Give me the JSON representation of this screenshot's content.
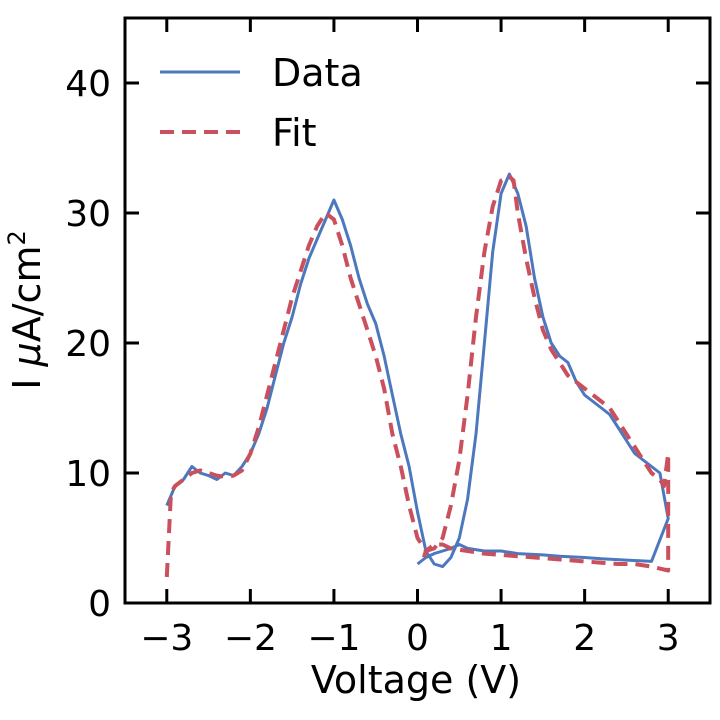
{
  "chart_data": {
    "type": "line",
    "title": "",
    "xlabel": "Voltage (V)",
    "ylabel": "I μA/cm²",
    "ylabel_parts": {
      "prefix": "I ",
      "mu": "μ",
      "unit": "A/cm",
      "exp": "2"
    },
    "xlim": [
      -3.5,
      3.5
    ],
    "ylim": [
      0,
      45
    ],
    "xticks": [
      -3,
      -2,
      -1,
      0,
      1,
      2,
      3
    ],
    "xtick_labels": [
      "−3",
      "−2",
      "−1",
      "0",
      "1",
      "2",
      "3"
    ],
    "yticks": [
      0,
      10,
      20,
      30,
      40
    ],
    "ytick_labels": [
      "0",
      "10",
      "20",
      "30",
      "40"
    ],
    "grid": false,
    "legend_position": "top-left",
    "series": [
      {
        "name": "Data",
        "style": "solid",
        "color": "#4c78bd",
        "x": [
          -3.0,
          -2.9,
          -2.8,
          -2.7,
          -2.6,
          -2.5,
          -2.4,
          -2.3,
          -2.2,
          -2.1,
          -2.0,
          -1.9,
          -1.8,
          -1.7,
          -1.6,
          -1.5,
          -1.4,
          -1.3,
          -1.2,
          -1.1,
          -1.0,
          -0.9,
          -0.8,
          -0.7,
          -0.6,
          -0.5,
          -0.4,
          -0.3,
          -0.2,
          -0.1,
          0.0,
          0.1,
          0.2,
          0.3,
          0.4,
          0.5,
          0.6,
          0.7,
          0.8,
          0.9,
          1.0,
          1.1,
          1.2,
          1.3,
          1.4,
          1.5,
          1.6,
          1.7,
          1.8,
          1.9,
          2.0,
          2.1,
          2.2,
          2.3,
          2.4,
          2.5,
          2.6,
          2.7,
          2.8,
          2.9,
          3.0,
          2.8,
          2.5,
          2.2,
          2.0,
          1.7,
          1.5,
          1.2,
          1.0,
          0.8,
          0.6,
          0.5,
          0.4,
          0.3,
          0.2,
          0.1,
          0.0
        ],
        "y": [
          7.5,
          9.0,
          9.5,
          10.5,
          10.0,
          9.8,
          9.5,
          10.0,
          9.8,
          10.5,
          11.5,
          13.0,
          15.0,
          17.5,
          20.0,
          22.0,
          24.5,
          26.5,
          28.0,
          29.5,
          31.0,
          29.5,
          27.5,
          25.0,
          23.0,
          21.5,
          19.0,
          16.0,
          13.0,
          10.5,
          7.0,
          4.0,
          3.0,
          2.8,
          3.5,
          5.0,
          8.0,
          13.0,
          20.0,
          27.0,
          31.5,
          33.0,
          31.5,
          29.0,
          25.0,
          22.0,
          20.0,
          19.0,
          18.5,
          17.0,
          16.0,
          15.5,
          15.0,
          14.5,
          13.5,
          12.5,
          11.5,
          11.0,
          10.5,
          10.0,
          6.5,
          3.2,
          3.3,
          3.4,
          3.5,
          3.6,
          3.7,
          3.8,
          4.0,
          4.0,
          4.2,
          4.5,
          4.2,
          4.0,
          3.8,
          3.5,
          3.0
        ]
      },
      {
        "name": "Fit",
        "style": "dashed",
        "color": "#c9505c",
        "x": [
          -3.0,
          -2.95,
          -2.9,
          -2.8,
          -2.7,
          -2.6,
          -2.5,
          -2.4,
          -2.3,
          -2.2,
          -2.1,
          -2.0,
          -1.9,
          -1.8,
          -1.7,
          -1.6,
          -1.5,
          -1.4,
          -1.3,
          -1.2,
          -1.1,
          -1.0,
          -0.9,
          -0.8,
          -0.7,
          -0.6,
          -0.5,
          -0.4,
          -0.3,
          -0.2,
          -0.1,
          0.0,
          0.1,
          0.2,
          0.3,
          0.4,
          0.5,
          0.6,
          0.7,
          0.8,
          0.9,
          1.0,
          1.1,
          1.15,
          1.2,
          1.3,
          1.4,
          1.5,
          1.6,
          1.7,
          1.8,
          1.9,
          2.0,
          2.1,
          2.2,
          2.3,
          2.4,
          2.5,
          2.6,
          2.7,
          2.8,
          2.9,
          2.95,
          3.0,
          3.0,
          2.8,
          2.6,
          2.4,
          2.2,
          2.0,
          1.8,
          1.6,
          1.4,
          1.2,
          1.0,
          0.8,
          0.6,
          0.4,
          0.3,
          0.2,
          0.1,
          0.05
        ],
        "y": [
          2.0,
          8.5,
          9.0,
          9.5,
          10.0,
          10.2,
          10.0,
          9.8,
          9.7,
          9.8,
          10.2,
          11.5,
          13.5,
          16.0,
          18.5,
          21.0,
          23.5,
          25.5,
          27.5,
          29.0,
          30.0,
          29.5,
          27.5,
          25.0,
          23.0,
          21.0,
          19.0,
          16.5,
          13.0,
          10.5,
          7.5,
          5.0,
          4.0,
          4.2,
          5.0,
          7.5,
          11.0,
          16.0,
          22.0,
          27.0,
          30.5,
          32.5,
          32.8,
          32.5,
          30.0,
          26.5,
          23.5,
          21.0,
          19.5,
          18.5,
          17.5,
          17.0,
          16.5,
          16.0,
          15.5,
          15.0,
          14.0,
          13.0,
          12.0,
          11.0,
          10.0,
          9.5,
          9.0,
          11.5,
          2.5,
          2.8,
          3.0,
          3.0,
          3.1,
          3.2,
          3.3,
          3.4,
          3.5,
          3.6,
          3.7,
          3.8,
          4.0,
          4.2,
          4.5,
          4.5,
          4.0,
          3.0
        ]
      }
    ]
  }
}
